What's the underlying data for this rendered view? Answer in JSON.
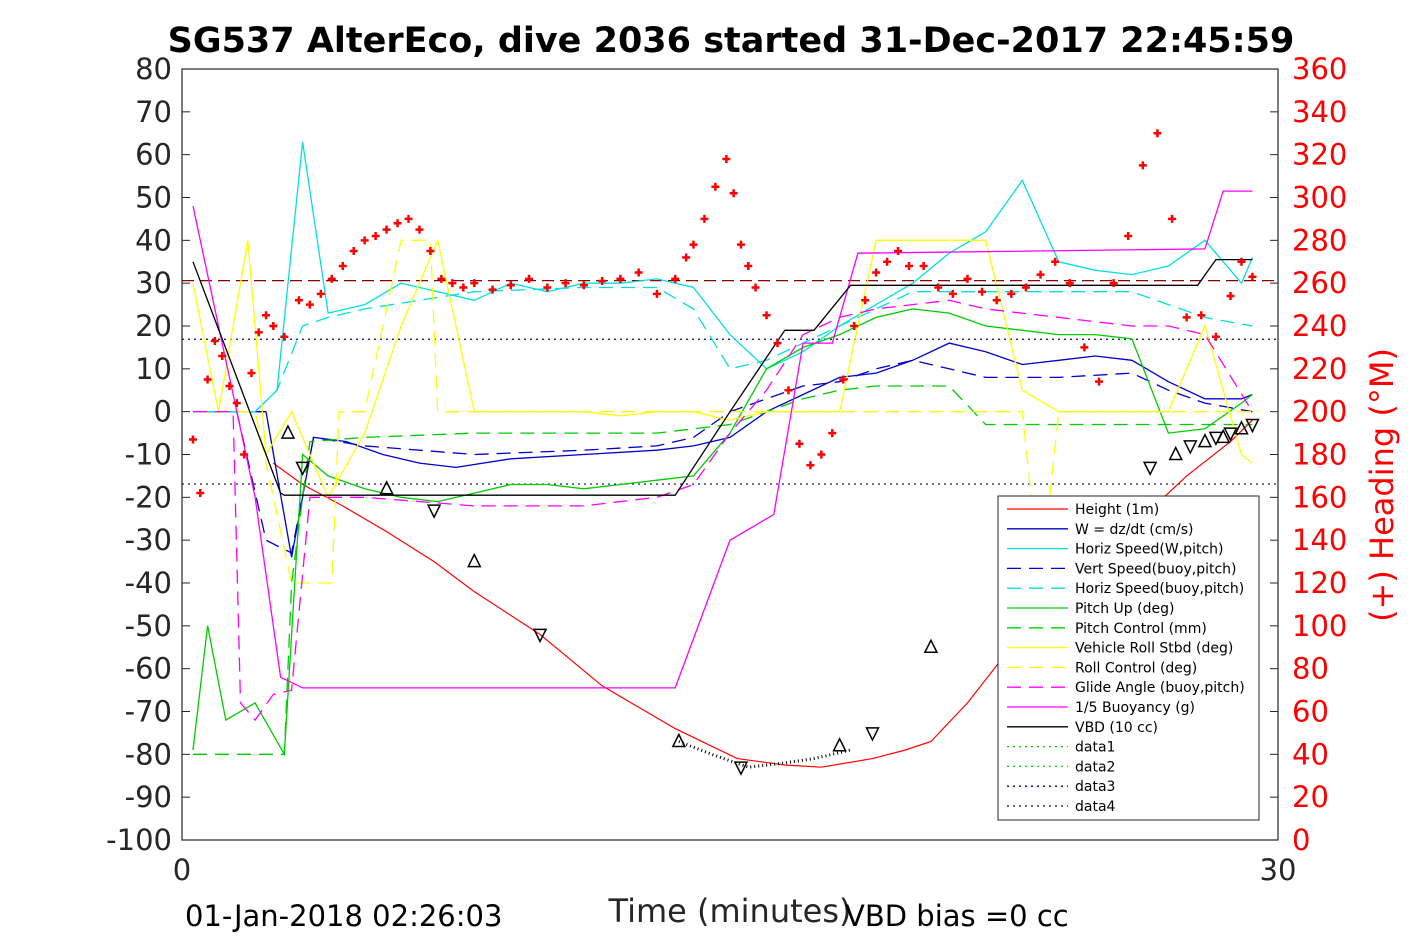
{
  "chart_data": {
    "type": "line",
    "title": "SG537 AlterEco, dive 2036 started 31-Dec-2017 22:45:59",
    "xlabel": "Time (minutes)",
    "ylabel_right": "(+) Heading (°M)",
    "xlim": [
      0,
      30
    ],
    "ylim": [
      -100,
      80
    ],
    "ylim_right": [
      0,
      360
    ],
    "x_ticks": [
      "0",
      "30"
    ],
    "y_ticks": [
      "80",
      "70",
      "60",
      "50",
      "40",
      "30",
      "20",
      "10",
      "0",
      "-10",
      "-20",
      "-30",
      "-40",
      "-50",
      "-60",
      "-70",
      "-80",
      "-90",
      "-100"
    ],
    "y_ticks_right": [
      "360",
      "340",
      "320",
      "300",
      "280",
      "260",
      "240",
      "220",
      "200",
      "180",
      "160",
      "140",
      "120",
      "100",
      "80",
      "60",
      "40",
      "20",
      "0"
    ],
    "footer_left": "01-Jan-2018 02:26:03",
    "footer_right": "VBD bias =0 cc",
    "legend_position": "lower-right",
    "legend": [
      {
        "label": "Height (1m)",
        "color": "#ff0000",
        "style": "solid"
      },
      {
        "label": "W = dz/dt (cm/s)",
        "color": "#0000cc",
        "style": "solid"
      },
      {
        "label": "Horiz Speed(W,pitch)",
        "color": "#00e0e0",
        "style": "solid"
      },
      {
        "label": "Vert Speed(buoy,pitch)",
        "color": "#0000cc",
        "style": "dashed"
      },
      {
        "label": "Horiz Speed(buoy,pitch)",
        "color": "#00e0e0",
        "style": "dashed"
      },
      {
        "label": "Pitch Up (deg)",
        "color": "#00cc00",
        "style": "solid"
      },
      {
        "label": "Pitch Control (mm)",
        "color": "#00cc00",
        "style": "dashed"
      },
      {
        "label": "Vehicle Roll Stbd (deg)",
        "color": "#ffff00",
        "style": "solid"
      },
      {
        "label": "Roll Control (deg)",
        "color": "#ffff00",
        "style": "dashed"
      },
      {
        "label": "Glide Angle (buoy,pitch)",
        "color": "#ff00ff",
        "style": "dashed"
      },
      {
        "label": "1/5 Buoyancy (g)",
        "color": "#ff00ff",
        "style": "solid"
      },
      {
        "label": "VBD (10 cc)",
        "color": "#000000",
        "style": "solid"
      },
      {
        "label": "data1",
        "color": "#00cc00",
        "style": "dotted"
      },
      {
        "label": "data2",
        "color": "#00cc00",
        "style": "dotted"
      },
      {
        "label": "data3",
        "color": "#000080",
        "style": "dotted"
      },
      {
        "label": "data4",
        "color": "#000080",
        "style": "dotted"
      }
    ],
    "reference_lines": [
      {
        "y": 30.6,
        "color": "#8b0000",
        "style": "dashed"
      },
      {
        "y": 16.9,
        "color": "#000080",
        "style": "dotted"
      },
      {
        "y": -16.9,
        "color": "#000080",
        "style": "dotted"
      }
    ],
    "series": [
      {
        "name": "Height (1m)",
        "color": "#ff0000",
        "style": "solid",
        "x": [
          2.5,
          3.3,
          4.4,
          5.6,
          6.9,
          8.0,
          9.8,
          11.5,
          13.5,
          15.2,
          16.5,
          17.5,
          18.9,
          19.8,
          20.5,
          21.5,
          22.6,
          23.8,
          24.5,
          25.5,
          26.5,
          27.5,
          28.7,
          29.3
        ],
        "y": [
          -12,
          -17,
          -22,
          -28,
          -35,
          -42,
          -52,
          -64,
          -74,
          -81,
          -82.5,
          -83,
          -81,
          -79,
          -77,
          -68,
          -56,
          -44,
          -40,
          -31,
          -23,
          -15,
          -7,
          -2
        ]
      },
      {
        "name": "W = dz/dt (cm/s)",
        "color": "#0000cc",
        "style": "solid",
        "x": [
          0.3,
          1.5,
          2.3,
          3.0,
          3.6,
          4.5,
          5.5,
          6.5,
          7.5,
          9.0,
          11,
          13,
          14,
          15,
          16,
          17,
          18,
          19,
          20,
          21,
          22,
          23,
          24,
          25,
          26,
          27,
          28,
          29,
          29.3
        ],
        "y": [
          0,
          0,
          0,
          -34,
          -6,
          -7,
          -10,
          -12,
          -13,
          -11,
          -10,
          -9,
          -8,
          -6,
          0,
          4,
          8,
          9,
          12,
          16,
          14,
          11,
          12,
          13,
          12,
          7,
          3,
          3,
          4
        ]
      },
      {
        "name": "Horiz Speed(W,pitch)",
        "color": "#00e0e0",
        "style": "solid",
        "x": [
          0.3,
          2.0,
          2.6,
          3.3,
          4.0,
          5.0,
          6.0,
          7.0,
          8.0,
          9.0,
          10,
          11,
          12,
          13,
          14,
          15,
          16,
          17,
          18,
          19,
          20,
          21,
          22,
          23,
          24,
          25,
          26,
          27,
          28,
          29,
          29.3
        ],
        "y": [
          0,
          0,
          5,
          63,
          23,
          25,
          30,
          28,
          26,
          30,
          28,
          30,
          30,
          31,
          29,
          18,
          10,
          14,
          20,
          25,
          30,
          37,
          42,
          54,
          35,
          33,
          32,
          34,
          40,
          30,
          36
        ]
      },
      {
        "name": "Vert Speed(buoy,pitch)",
        "color": "#0000cc",
        "style": "dashed",
        "x": [
          0.3,
          1.5,
          2.3,
          3.0,
          3.6,
          5.0,
          8.0,
          11,
          13,
          14,
          15,
          16,
          17,
          18,
          19,
          20,
          21,
          22,
          24,
          26,
          27,
          28,
          29.3
        ],
        "y": [
          0,
          0,
          -30,
          -33,
          -6,
          -8,
          -10,
          -9,
          -8,
          -6,
          0,
          3,
          6,
          7,
          10,
          12,
          10,
          8,
          8,
          9,
          5,
          2,
          0
        ]
      },
      {
        "name": "Horiz Speed(buoy,pitch)",
        "color": "#00e0e0",
        "style": "dashed",
        "x": [
          0.3,
          2.0,
          2.6,
          3.3,
          4.0,
          5.0,
          8.0,
          11,
          13,
          14,
          15,
          16,
          17,
          18,
          19,
          20,
          21,
          22,
          24,
          26,
          27,
          28,
          29.3
        ],
        "y": [
          0,
          0,
          5,
          20,
          22,
          24,
          28,
          29,
          29,
          24,
          10,
          12,
          16,
          20,
          24,
          28,
          28,
          28,
          28,
          28,
          25,
          22,
          20
        ]
      },
      {
        "name": "Pitch Up (deg)",
        "color": "#00cc00",
        "style": "solid",
        "x": [
          0.3,
          0.7,
          1.2,
          2.0,
          2.8,
          3.3,
          4.0,
          5.0,
          6.0,
          7.0,
          8.0,
          9.0,
          10,
          11,
          12,
          13,
          14,
          15,
          16,
          17,
          18,
          19,
          20,
          21,
          22,
          23,
          24,
          25,
          26,
          27,
          28,
          29,
          29.3
        ],
        "y": [
          -79,
          -50,
          -72,
          -68,
          -80,
          -10,
          -15,
          -18,
          -20,
          -21,
          -19,
          -17,
          -17,
          -18,
          -17,
          -16,
          -15,
          -5,
          10,
          15,
          18,
          22,
          24,
          23,
          20,
          19,
          18,
          18,
          17,
          -5,
          -4,
          2,
          4
        ]
      },
      {
        "name": "Pitch Control (mm)",
        "color": "#00cc00",
        "style": "dashed",
        "x": [
          0.3,
          2.8,
          3.0,
          3.5,
          5.0,
          8.0,
          11,
          13,
          14,
          15,
          16,
          17,
          18,
          19,
          20,
          21,
          22,
          24,
          26,
          27,
          28,
          29.3
        ],
        "y": [
          -80,
          -80,
          -40,
          -7,
          -6,
          -5,
          -5,
          -5,
          -4,
          -3,
          0,
          3,
          5,
          6,
          6,
          6,
          -3,
          -3,
          -3,
          -3,
          -3,
          -3
        ]
      },
      {
        "name": "Vehicle Roll Stbd (deg)",
        "color": "#ffff00",
        "style": "solid",
        "x": [
          0.3,
          1.0,
          1.8,
          2.3,
          3.0,
          4.0,
          5.0,
          6.0,
          7.0,
          8.0,
          9.0,
          10,
          11,
          12,
          13,
          14,
          15,
          16,
          17,
          18,
          19,
          20,
          21,
          22,
          23,
          24,
          25,
          26,
          27,
          28,
          29,
          29.3
        ],
        "y": [
          30,
          0,
          40,
          -10,
          0,
          -20,
          -5,
          20,
          40,
          0,
          0,
          0,
          0,
          -1,
          0,
          0,
          -2,
          0,
          0,
          0,
          40,
          40,
          40,
          40,
          5,
          0,
          0,
          0,
          0,
          20,
          -10,
          -12
        ]
      },
      {
        "name": "Roll Control (deg)",
        "color": "#ffff00",
        "style": "dashed",
        "x": [
          0.3,
          2.0,
          3.0,
          3.5,
          4.1,
          4.3,
          5.0,
          6.0,
          6.8,
          7.0,
          8.0,
          11,
          14,
          16,
          18,
          20,
          22,
          23,
          23.5,
          24,
          25,
          26,
          27,
          28,
          29.3
        ],
        "y": [
          0,
          0,
          -40,
          -40,
          -40,
          0,
          0,
          40,
          40,
          0,
          0,
          0,
          0,
          0,
          0,
          0,
          0,
          0,
          -40,
          0,
          0,
          0,
          0,
          0,
          0
        ]
      },
      {
        "name": "Glide Angle (buoy,pitch)",
        "color": "#ff00ff",
        "style": "dashed",
        "x": [
          0.3,
          1.4,
          1.6,
          2.0,
          2.5,
          3.0,
          3.5,
          5.0,
          8.0,
          11,
          13,
          14,
          15,
          16,
          17,
          18,
          19,
          20,
          21,
          22,
          24,
          26,
          27,
          28,
          29.3
        ],
        "y": [
          0,
          0,
          -68,
          -72,
          -66,
          -65,
          -20,
          -20,
          -22,
          -22,
          -20,
          -17,
          -5,
          5,
          18,
          22,
          24,
          25,
          26,
          24,
          22,
          20,
          20,
          18,
          0
        ]
      },
      {
        "name": "1/5 Buoyancy (g)",
        "color": "#ff00ff",
        "style": "solid",
        "x": [
          0.3,
          1.0,
          2.0,
          2.7,
          3.3,
          4.0,
          8.0,
          13.5,
          15.0,
          16.2,
          17.0,
          17.8,
          18.5,
          28.0,
          28.5,
          29.3
        ],
        "y": [
          48,
          20,
          -20,
          -62,
          -64.5,
          -64.5,
          -64.5,
          -64.5,
          -30,
          -24,
          16,
          16,
          37,
          38,
          51.5,
          51.5
        ]
      },
      {
        "name": "VBD (10 cc)",
        "color": "#000000",
        "style": "solid",
        "x": [
          0.3,
          2.7,
          2.8,
          13.5,
          15.0,
          16.5,
          17.3,
          18.3,
          18.4,
          27.8,
          28.3,
          29.3
        ],
        "y": [
          35,
          -19,
          -19.5,
          -19.5,
          0,
          19,
          19,
          29.5,
          29.5,
          29.5,
          35.5,
          35.5
        ]
      }
    ],
    "heading_markers": {
      "color": "#ff0000",
      "marker": "+",
      "axis": "right",
      "x": [
        0.3,
        0.5,
        0.7,
        0.9,
        1.1,
        1.3,
        1.5,
        1.7,
        1.9,
        2.1,
        2.3,
        2.5,
        2.8,
        3.2,
        3.5,
        3.8,
        4.1,
        4.4,
        4.7,
        5.0,
        5.3,
        5.6,
        5.9,
        6.2,
        6.5,
        6.8,
        7.1,
        7.4,
        7.7,
        8.0,
        8.5,
        9.0,
        9.5,
        10,
        10.5,
        11,
        11.5,
        12,
        12.5,
        13,
        13.5,
        13.8,
        14.0,
        14.3,
        14.6,
        14.9,
        15.1,
        15.3,
        15.5,
        15.7,
        16.0,
        16.3,
        16.6,
        16.9,
        17.2,
        17.5,
        17.8,
        18.1,
        18.4,
        18.7,
        19.0,
        19.3,
        19.6,
        19.9,
        20.3,
        20.7,
        21.1,
        21.5,
        21.9,
        22.3,
        22.7,
        23.1,
        23.5,
        23.9,
        24.3,
        24.7,
        25.1,
        25.5,
        25.9,
        26.3,
        26.7,
        27.1,
        27.5,
        27.9,
        28.3,
        28.7,
        29.0,
        29.3
      ],
      "y": [
        187,
        162,
        215,
        233,
        226,
        212,
        204,
        180,
        218,
        237,
        245,
        240,
        235,
        252,
        250,
        255,
        262,
        268,
        275,
        280,
        282,
        285,
        288,
        290,
        285,
        275,
        262,
        260,
        258,
        260,
        257,
        259,
        262,
        258,
        260,
        259,
        261,
        262,
        265,
        255,
        262,
        272,
        278,
        290,
        305,
        318,
        302,
        278,
        268,
        258,
        245,
        232,
        210,
        185,
        175,
        180,
        190,
        215,
        240,
        252,
        265,
        270,
        275,
        268,
        268,
        258,
        255,
        262,
        256,
        252,
        255,
        258,
        264,
        270,
        260,
        230,
        214,
        260,
        282,
        315,
        330,
        290,
        244,
        245,
        235,
        254,
        270,
        263
      ]
    },
    "triangle_markers": {
      "color": "#000000",
      "marker": "triangle",
      "series": "Height (1m)",
      "x": [
        2.9,
        3.3,
        5.6,
        6.9,
        8.0,
        9.8,
        13.6,
        15.3,
        18.0,
        18.9,
        20.5,
        23.5,
        24.0,
        26.5,
        27.2,
        27.6,
        28.0,
        28.3,
        28.5,
        28.7,
        29.0,
        29.3
      ],
      "y": [
        -5,
        -13,
        -18,
        -23,
        -35,
        -52,
        -77,
        -83,
        -78,
        -75,
        -55,
        -43,
        -40,
        -13,
        -10,
        -8,
        -7,
        -6,
        -6,
        -5,
        -4,
        -3
      ]
    },
    "dotted_overlay": {
      "name": "data1",
      "color": "#00cc00",
      "style": "dotted",
      "x": [
        13.6,
        14.5,
        15.5,
        16.5,
        17.3,
        18.3
      ],
      "y": [
        -77,
        -80,
        -83,
        -82,
        -81,
        -79
      ]
    }
  }
}
